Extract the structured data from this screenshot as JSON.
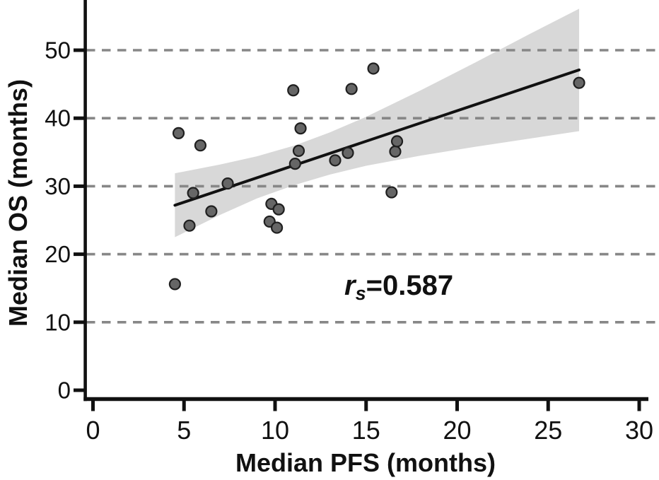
{
  "figure": {
    "background": "#ffffff"
  },
  "chart_data": {
    "type": "scatter",
    "title": "",
    "xlabel": "Median PFS (months)",
    "ylabel": "Median OS (months)",
    "xlim": [
      0,
      31
    ],
    "ylim": [
      0,
      57.5
    ],
    "xticks": [
      0,
      5,
      10,
      15,
      20,
      25,
      30
    ],
    "yticks": [
      0,
      10,
      20,
      30,
      40,
      50
    ],
    "gridlines_y": [
      10,
      20,
      30,
      40,
      50
    ],
    "grid_style": "dashed",
    "legend": "none",
    "points": [
      [
        4.5,
        15.6
      ],
      [
        4.7,
        37.8
      ],
      [
        5.3,
        24.2
      ],
      [
        5.5,
        29.0
      ],
      [
        5.9,
        36.0
      ],
      [
        6.5,
        26.3
      ],
      [
        7.4,
        30.4
      ],
      [
        9.7,
        24.8
      ],
      [
        9.8,
        27.4
      ],
      [
        10.1,
        23.9
      ],
      [
        10.2,
        26.6
      ],
      [
        11.0,
        44.1
      ],
      [
        11.1,
        33.3
      ],
      [
        11.3,
        35.2
      ],
      [
        11.4,
        38.5
      ],
      [
        13.3,
        33.8
      ],
      [
        14.0,
        34.9
      ],
      [
        14.2,
        44.3
      ],
      [
        15.4,
        47.3
      ],
      [
        16.4,
        29.1
      ],
      [
        16.6,
        35.1
      ],
      [
        16.7,
        36.6
      ],
      [
        26.7,
        45.2
      ]
    ],
    "regression_line": {
      "x1": 4.5,
      "y1": 27.2,
      "x2": 26.7,
      "y2": 47.1
    },
    "confidence_band": [
      {
        "x": 4.5,
        "top": 31.9,
        "bottom": 22.5
      },
      {
        "x": 7.0,
        "top": 33.2,
        "bottom": 25.8
      },
      {
        "x": 9.0,
        "top": 34.4,
        "bottom": 28.2
      },
      {
        "x": 11.1,
        "top": 36.0,
        "bottom": 30.2
      },
      {
        "x": 13.0,
        "top": 37.9,
        "bottom": 31.7
      },
      {
        "x": 15.0,
        "top": 40.2,
        "bottom": 33.0
      },
      {
        "x": 18.0,
        "top": 44.1,
        "bottom": 34.5
      },
      {
        "x": 21.0,
        "top": 48.2,
        "bottom": 35.8
      },
      {
        "x": 24.0,
        "top": 52.4,
        "bottom": 37.0
      },
      {
        "x": 26.7,
        "top": 56.1,
        "bottom": 38.1
      }
    ],
    "annotation": {
      "prefix_italic": "r",
      "subscript": "s",
      "value": "=0.587",
      "x": 16.8,
      "y": 15.5
    },
    "colors": {
      "point_fill": "#666666",
      "point_stroke": "#1f1f1f",
      "line": "#111111",
      "band": "#d8d8d8",
      "grid": "#878787",
      "axis": "#111111"
    }
  }
}
